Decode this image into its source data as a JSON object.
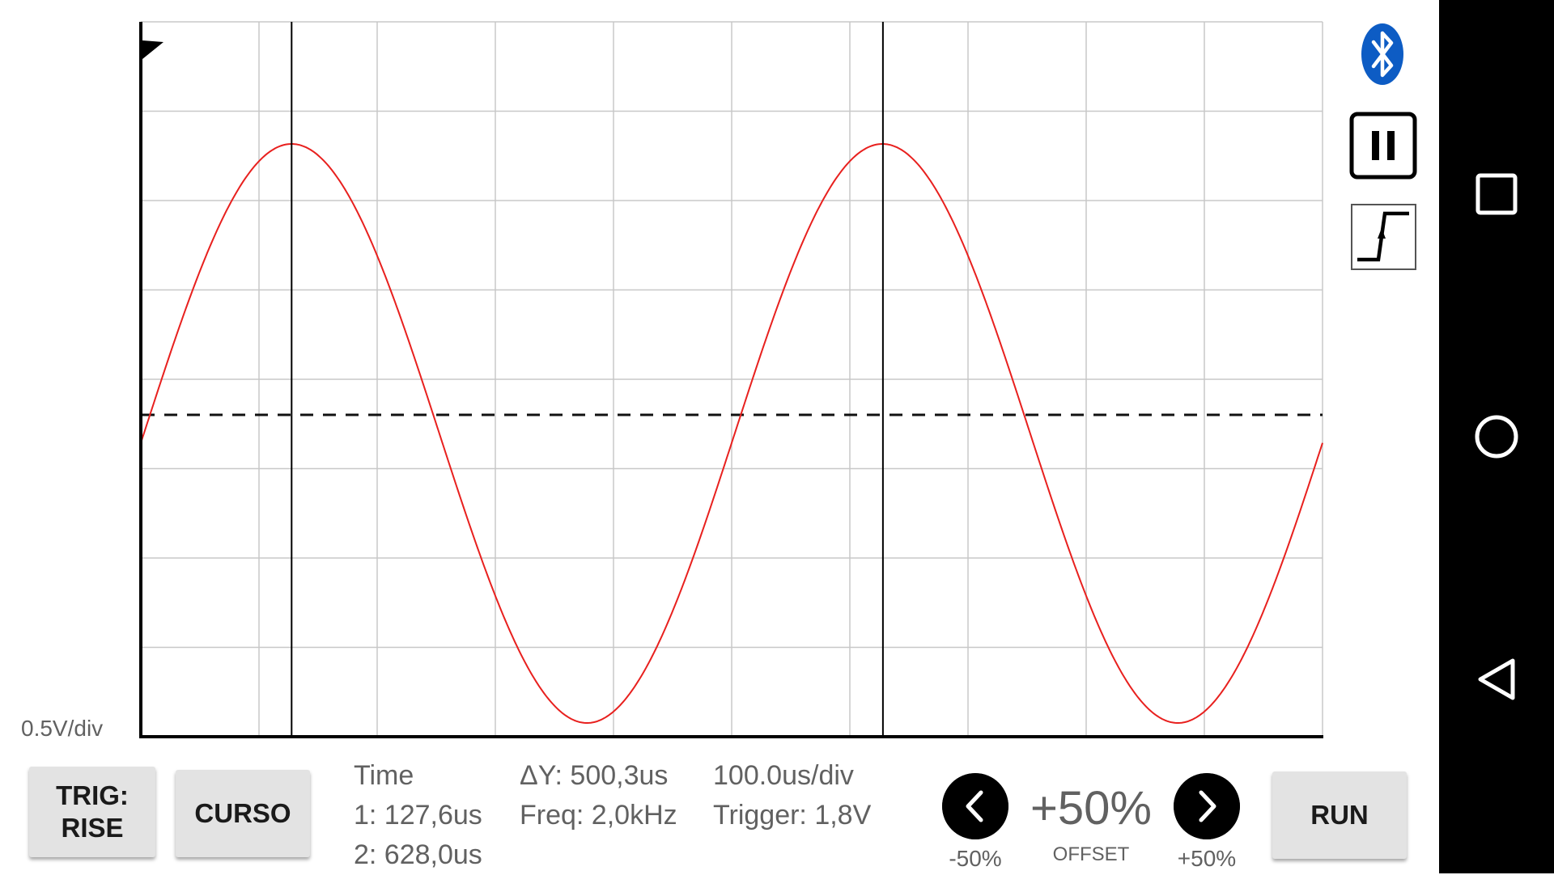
{
  "scope": {
    "volts_per_div_label": "0.5V/div",
    "grid": {
      "divisions_x": 10,
      "divisions_y": 8
    },
    "trace_color": "#e8201e",
    "signal": {
      "type": "sine",
      "frequency_khz": 2.0,
      "cursor1_us": 127.6,
      "cursor2_us": 628.0,
      "time_per_div_us": 100
    },
    "trigger_level_v": 1.8
  },
  "side_icons": [
    "bluetooth-icon",
    "pause-icon",
    "rising-edge-trigger-icon"
  ],
  "controls": {
    "trig_label_1": "TRIG:",
    "trig_label_2": "RISE",
    "cursor_label": "CURSO",
    "run_label": "RUN"
  },
  "info": {
    "time_title": "Time",
    "cursor1": "1: 127,6us",
    "cursor2": "2: 628,0us",
    "delta_y": "ΔY: 500,3us",
    "freq": "Freq: 2,0kHz",
    "timebase": "100.0us/div",
    "trigger": "Trigger: 1,8V"
  },
  "offset": {
    "value": "+50%",
    "label": "OFFSET",
    "minus_label": "-50%",
    "plus_label": "+50%"
  },
  "nav_icons": [
    "recent-apps-icon",
    "home-icon",
    "back-icon"
  ]
}
